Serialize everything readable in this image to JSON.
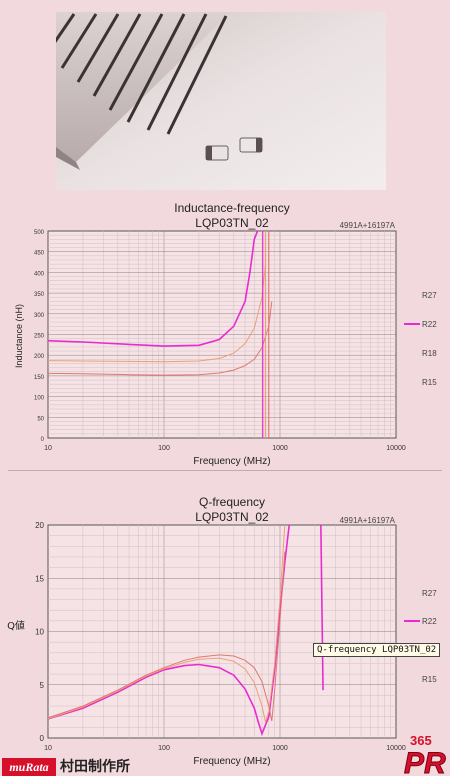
{
  "brand": {
    "logo_text": "muRata",
    "company": "村田制作所",
    "badge_number": "365",
    "badge_letters": "PR"
  },
  "tooltip": "Q-frequency LQP03TN_02",
  "colors": {
    "background": "#f2d9dd",
    "grid": "#d0bfc3",
    "r27": "#e7b7a0",
    "r22": "#e92ad1",
    "r18": "#e8a07a",
    "r15": "#e07870",
    "logo_red": "#d6102a"
  },
  "chart_data": [
    {
      "type": "line",
      "title": "Inductance-frequency",
      "subtitle": "LQP03TN_02",
      "corner_label": "4991A+16197A",
      "xlabel": "Frequency (MHz)",
      "ylabel": "Inductance (nH)",
      "xscale": "log",
      "xlim": [
        10,
        10000
      ],
      "ylim": [
        0,
        500
      ],
      "x_ticks": [
        10,
        100,
        1000,
        10000
      ],
      "y_ticks": [
        0,
        50,
        100,
        150,
        200,
        250,
        300,
        350,
        400,
        450,
        500
      ],
      "grid": true,
      "legend_position": "right",
      "series": [
        {
          "name": "R27",
          "color": "#e7b7a0",
          "x": [],
          "y": []
        },
        {
          "name": "R22",
          "color": "#e92ad1",
          "x": [
            10,
            20,
            50,
            100,
            200,
            300,
            400,
            500,
            550,
            600,
            640
          ],
          "y": [
            235,
            232,
            226,
            222,
            224,
            238,
            270,
            330,
            400,
            480,
            500
          ]
        },
        {
          "name": "R18",
          "color": "#e8a07a",
          "x": [
            10,
            20,
            50,
            100,
            200,
            300,
            400,
            500,
            600,
            700,
            750
          ],
          "y": [
            187,
            186,
            185,
            184,
            186,
            192,
            205,
            228,
            265,
            340,
            420
          ]
        },
        {
          "name": "R15",
          "color": "#e07870",
          "x": [
            10,
            20,
            50,
            100,
            200,
            300,
            400,
            500,
            600,
            700,
            800,
            850
          ],
          "y": [
            156,
            155,
            153,
            152,
            153,
            157,
            164,
            175,
            190,
            218,
            270,
            330
          ]
        }
      ]
    },
    {
      "type": "line",
      "title": "Q-frequency",
      "subtitle": "LQP03TN_02",
      "corner_label": "4991A+16197A",
      "xlabel": "Frequency (MHz)",
      "ylabel": "Q値",
      "xscale": "log",
      "xlim": [
        10,
        10000
      ],
      "ylim": [
        0,
        20
      ],
      "x_ticks": [
        10,
        100,
        1000,
        10000
      ],
      "y_ticks": [
        0,
        5,
        10,
        15,
        20
      ],
      "grid": true,
      "legend_position": "right",
      "series": [
        {
          "name": "R27",
          "color": "#e7b7a0",
          "x": [],
          "y": []
        },
        {
          "name": "R22",
          "color": "#e92ad1",
          "x": [
            10,
            20,
            40,
            70,
            100,
            150,
            200,
            300,
            400,
            500,
            600,
            650,
            700,
            800,
            900,
            1000,
            1100,
            1200
          ],
          "y": [
            1.8,
            2.8,
            4.3,
            5.7,
            6.4,
            6.8,
            6.9,
            6.6,
            5.9,
            4.6,
            2.8,
            1.5,
            0.4,
            2.0,
            6.5,
            12.0,
            16.5,
            20.0
          ]
        },
        {
          "name": "R18",
          "color": "#e8a07a",
          "x": [
            10,
            20,
            40,
            70,
            100,
            150,
            200,
            300,
            400,
            500,
            600,
            700,
            750,
            800,
            900,
            1000,
            1100
          ],
          "y": [
            1.8,
            2.9,
            4.4,
            5.8,
            6.5,
            7.1,
            7.4,
            7.5,
            7.2,
            6.5,
            5.2,
            3.0,
            1.5,
            2.5,
            7.0,
            13.0,
            20.0
          ]
        },
        {
          "name": "R15",
          "color": "#e07870",
          "x": [
            10,
            20,
            40,
            70,
            100,
            150,
            200,
            300,
            400,
            500,
            600,
            700,
            800,
            850,
            900,
            1000,
            1100
          ],
          "y": [
            1.9,
            3.0,
            4.5,
            5.9,
            6.6,
            7.3,
            7.6,
            7.8,
            7.7,
            7.3,
            6.6,
            5.3,
            3.0,
            1.6,
            4.5,
            11.0,
            17.5
          ]
        }
      ]
    }
  ]
}
